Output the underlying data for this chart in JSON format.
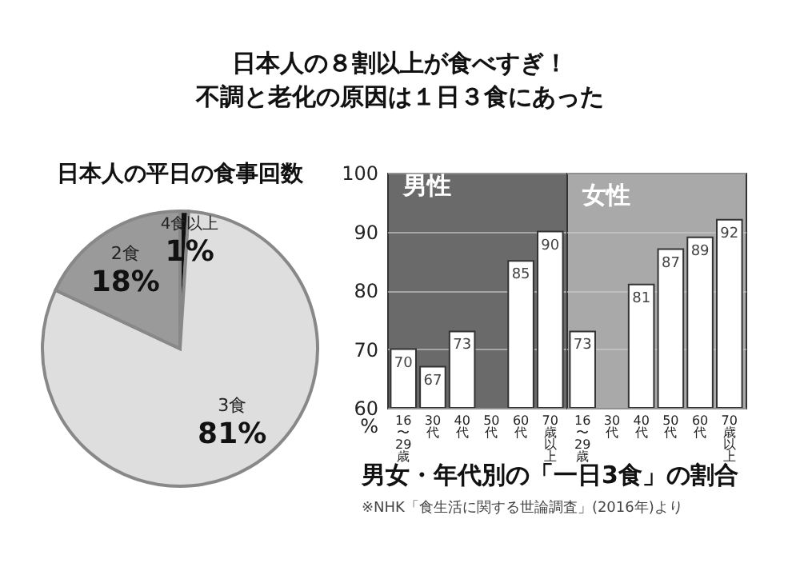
{
  "chart_data": [
    {
      "type": "other",
      "title": "日本人の８割以上が食べすぎ！",
      "subtitle": "不調と老化の原因は１日３食にあった"
    },
    {
      "type": "pie",
      "title": "日本人の平日の食事回数",
      "categories": [
        "4食以上",
        "3食",
        "2食"
      ],
      "values": [
        1,
        81,
        18
      ],
      "colors": [
        "#111111",
        "#dedede",
        "#9a9a9a"
      ],
      "value_labels": [
        "1%",
        "81%",
        "18%"
      ]
    },
    {
      "type": "bar",
      "title": "男性",
      "categories": [
        "16〜29歳",
        "30代",
        "40代",
        "50代",
        "60代",
        "70歳以上"
      ],
      "series": [
        {
          "color": "#ffffff",
          "values": [
            70,
            67,
            73,
            null,
            85,
            90
          ]
        }
      ],
      "ylim": [
        60,
        100
      ],
      "yticks": [
        {
          "value": 60,
          "label": "60\n%"
        },
        70,
        80,
        90,
        100
      ],
      "grid": "y",
      "data_labels": true
    },
    {
      "type": "bar",
      "title": "女性",
      "categories": [
        "16〜29歳",
        "30代",
        "40代",
        "50代",
        "60代",
        "70歳以上"
      ],
      "series": [
        {
          "color": "#ffffff",
          "values": [
            73,
            null,
            81,
            87,
            89,
            92
          ]
        }
      ],
      "ylim": [
        60,
        100
      ],
      "yticks": [
        60,
        70,
        80,
        90,
        100
      ],
      "grid": "y",
      "data_labels": true,
      "tick_labels": "x"
    },
    {
      "type": "other",
      "title": "男女・年代別の「一日3食」の割合",
      "annotations": [
        "※NHK「食生活に関する世論調査」(2016年)より"
      ]
    }
  ]
}
